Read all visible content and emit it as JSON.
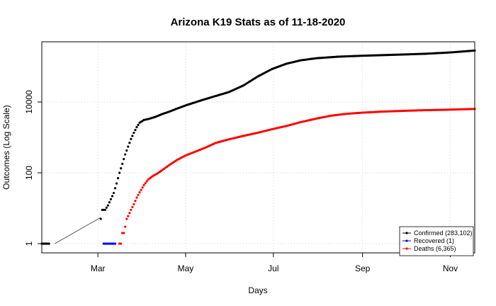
{
  "chart_data": {
    "type": "scatter",
    "title": "Arizona K19 Stats as of 11-18-2020",
    "xlabel": "Days",
    "ylabel": "Outcomes (Log Scale)",
    "y_scale": "log",
    "xlim": [
      "2020-01-22",
      "2020-11-18"
    ],
    "ylim": [
      0.55,
      500000
    ],
    "grid": true,
    "legend_position": "bottom-right",
    "x_ticks": [
      {
        "date": "2020-03-01",
        "label": "Mar"
      },
      {
        "date": "2020-05-01",
        "label": "May"
      },
      {
        "date": "2020-07-01",
        "label": "Jul"
      },
      {
        "date": "2020-09-01",
        "label": "Sep"
      },
      {
        "date": "2020-11-01",
        "label": "Nov"
      }
    ],
    "y_ticks": [
      {
        "value": 1,
        "label": "1"
      },
      {
        "value": 100,
        "label": "100"
      },
      {
        "value": 10000,
        "label": "10000"
      }
    ],
    "annotation_line": {
      "from": {
        "date": "2020-01-31",
        "value": 1
      },
      "to": {
        "date": "2020-03-03",
        "value": 5.5
      }
    },
    "series": [
      {
        "name": "Confirmed (283,102)",
        "color": "#000000",
        "segments": [
          [
            [
              "2020-01-22",
              1
            ],
            [
              "2020-01-27",
              1
            ]
          ],
          [
            [
              "2020-03-03",
              5
            ],
            [
              "2020-03-04",
              9
            ],
            [
              "2020-03-06",
              9
            ],
            [
              "2020-03-08",
              12
            ],
            [
              "2020-03-10",
              18
            ],
            [
              "2020-03-12",
              27
            ],
            [
              "2020-03-14",
              50
            ],
            [
              "2020-03-16",
              100
            ],
            [
              "2020-03-18",
              180
            ],
            [
              "2020-03-20",
              330
            ],
            [
              "2020-03-22",
              550
            ],
            [
              "2020-03-24",
              900
            ],
            [
              "2020-03-26",
              1350
            ],
            [
              "2020-03-28",
              1950
            ],
            [
              "2020-03-30",
              2600
            ],
            [
              "2020-04-02",
              3100
            ],
            [
              "2020-04-05",
              3300
            ],
            [
              "2020-04-10",
              3800
            ],
            [
              "2020-04-15",
              4600
            ],
            [
              "2020-04-20",
              5400
            ],
            [
              "2020-04-25",
              6500
            ],
            [
              "2020-05-01",
              8000
            ],
            [
              "2020-05-10",
              10500
            ],
            [
              "2020-05-20",
              14000
            ],
            [
              "2020-05-31",
              19000
            ],
            [
              "2020-06-10",
              29000
            ],
            [
              "2020-06-20",
              52000
            ],
            [
              "2020-06-30",
              85000
            ],
            [
              "2020-07-10",
              120000
            ],
            [
              "2020-07-20",
              150000
            ],
            [
              "2020-07-31",
              172000
            ],
            [
              "2020-08-15",
              190000
            ],
            [
              "2020-09-01",
              202000
            ],
            [
              "2020-09-15",
              210000
            ],
            [
              "2020-10-01",
              220000
            ],
            [
              "2020-10-15",
              230000
            ],
            [
              "2020-11-01",
              250000
            ],
            [
              "2020-11-18",
              283102
            ]
          ]
        ]
      },
      {
        "name": "Recovered (1)",
        "color": "#0000ff",
        "segments": [
          [
            [
              "2020-03-05",
              1
            ],
            [
              "2020-03-13",
              1
            ]
          ]
        ]
      },
      {
        "name": "Deaths (6,365)",
        "color": "#ff0000",
        "segments": [
          [
            [
              "2020-03-16",
              1
            ],
            [
              "2020-03-17",
              1
            ]
          ],
          [
            [
              "2020-03-18",
              2
            ],
            [
              "2020-03-19",
              2
            ],
            [
              "2020-03-20",
              3
            ],
            [
              "2020-03-21",
              5
            ],
            [
              "2020-03-22",
              6
            ],
            [
              "2020-03-24",
              9
            ],
            [
              "2020-03-26",
              13
            ],
            [
              "2020-03-28",
              20
            ],
            [
              "2020-03-30",
              28
            ],
            [
              "2020-04-02",
              45
            ],
            [
              "2020-04-05",
              65
            ],
            [
              "2020-04-08",
              80
            ],
            [
              "2020-04-12",
              100
            ],
            [
              "2020-04-16",
              130
            ],
            [
              "2020-04-20",
              170
            ],
            [
              "2020-04-25",
              230
            ],
            [
              "2020-05-01",
              310
            ],
            [
              "2020-05-08",
              400
            ],
            [
              "2020-05-15",
              520
            ],
            [
              "2020-05-22",
              700
            ],
            [
              "2020-05-31",
              880
            ],
            [
              "2020-06-10",
              1100
            ],
            [
              "2020-06-20",
              1350
            ],
            [
              "2020-06-30",
              1700
            ],
            [
              "2020-07-10",
              2100
            ],
            [
              "2020-07-20",
              2700
            ],
            [
              "2020-07-31",
              3400
            ],
            [
              "2020-08-10",
              4100
            ],
            [
              "2020-08-20",
              4600
            ],
            [
              "2020-09-01",
              5000
            ],
            [
              "2020-09-15",
              5350
            ],
            [
              "2020-10-01",
              5650
            ],
            [
              "2020-10-15",
              5880
            ],
            [
              "2020-11-01",
              6080
            ],
            [
              "2020-11-18",
              6365
            ]
          ]
        ]
      }
    ]
  }
}
